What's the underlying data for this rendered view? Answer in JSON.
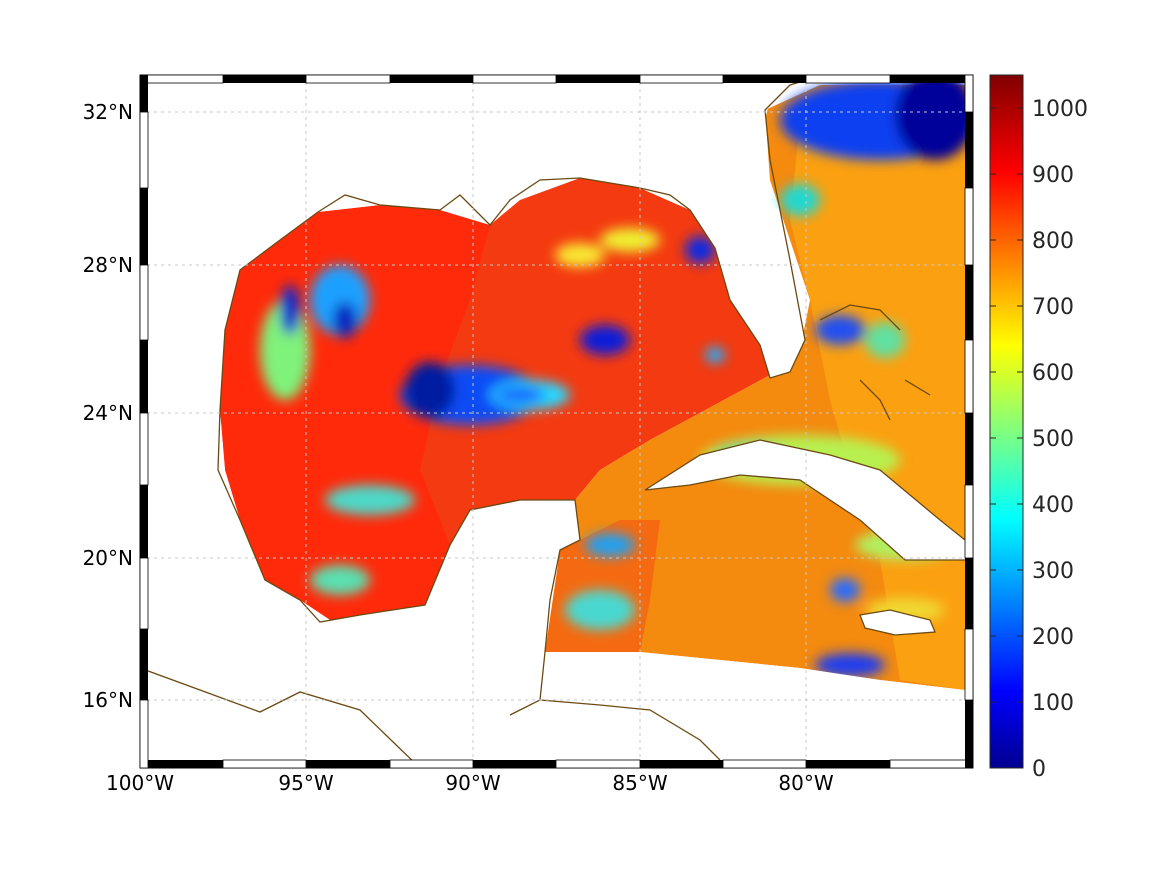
{
  "map": {
    "longitude_ticks": [
      "100°W",
      "95°W",
      "90°W",
      "85°W",
      "80°W"
    ],
    "latitude_ticks": [
      "32°N",
      "28°N",
      "24°N",
      "20°N",
      "16°N"
    ],
    "colors": {
      "coastline": "#6b4a12",
      "land": "#ffffff",
      "grid": "#bfbfbf"
    },
    "colormap": "jet"
  },
  "colorbar": {
    "range": [
      0,
      1050
    ],
    "ticks": [
      "0",
      "100",
      "200",
      "300",
      "400",
      "500",
      "600",
      "700",
      "800",
      "900",
      "1000"
    ]
  }
}
